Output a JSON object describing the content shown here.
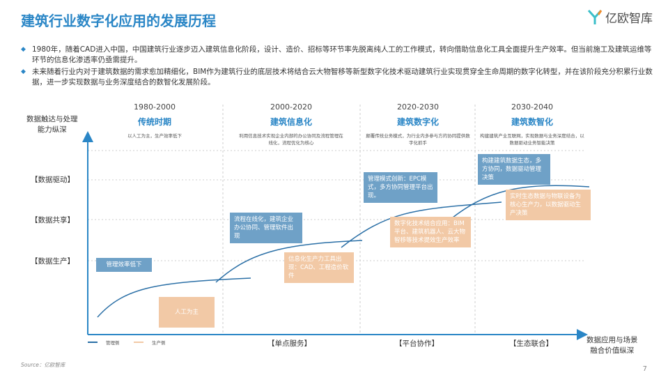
{
  "title": "建筑行业数字化应用的发展历程",
  "logo": {
    "text": "亿欧智库"
  },
  "bullets": [
    "1980年，随着CAD进入中国，中国建筑行业逐步迈入建筑信息化阶段，设计、造价、招标等环节率先脱离纯人工的工作模式，转向借助信息化工具全面提升生产效率。但当前施工及建筑运维等环节的信息化渗透率仍亟需提升。",
    "未来随着行业内对于建筑数据的需求愈加精细化，BIM作为建筑行业的底层技术将结合云大物智移等新型数字化技术驱动建筑行业实现贯穿全生命周期的数字化转型，并在该阶段充分积累行业数据，进一步实现数据与业务深度结合的数智化发展阶段。"
  ],
  "y_axis": {
    "title_line1": "数据触达与处理",
    "title_line2": "能力纵深",
    "levels": [
      "【数据驱动】",
      "【数据共享】",
      "【数据生产】"
    ]
  },
  "x_axis": {
    "title_line1": "数据应用与场景",
    "title_line2": "融合价值纵深",
    "categories": [
      "【单点服务】",
      "【平台协作】",
      "【生态联合】"
    ]
  },
  "eras": [
    {
      "year": "1980-2000",
      "name": "传统时期",
      "desc": "以人工为主，生产效率低下"
    },
    {
      "year": "2000-2020",
      "name": "建筑信息化",
      "desc": "利用信息技术实现企业内部的办公协同及流程管理在线化，流程优化为核心"
    },
    {
      "year": "2020-2030",
      "name": "建筑数字化",
      "desc": "颠覆传统业务模式，为行业内多参与方的协同提供数字化抓手"
    },
    {
      "year": "2030-2040",
      "name": "建筑数智化",
      "desc": "构建建筑产业互联网，实现数据与业务深度结合，以数据驱动业务智能决策"
    }
  ],
  "boxes": {
    "b1": "管理效率低下",
    "p1": "人工为主",
    "b2": "流程在线化，建筑企业办公协同、管理软件出现",
    "p2": "信息化生产力工具出现：CAD、工程造价软件",
    "b3": "管理模式创新：EPC模式，多方协同管理平台出现。",
    "p3": "数字化技术结合应用：BIM平台、建筑机器人、云大物智移等技术提效生产效率",
    "b4": "构建建筑数据生态，多方协同，数据驱动管理决策",
    "p4": "实时生态数据与物联设备为核心生产力，以数据驱动生产决策"
  },
  "legend": {
    "management": "管理侧",
    "production": "生产侧"
  },
  "colors": {
    "blue": "#2a86c6",
    "box_blue": "#6fa1c7",
    "box_peach": "#f2c9a6"
  },
  "source": "Source：亿欧智库",
  "page_number": "7"
}
